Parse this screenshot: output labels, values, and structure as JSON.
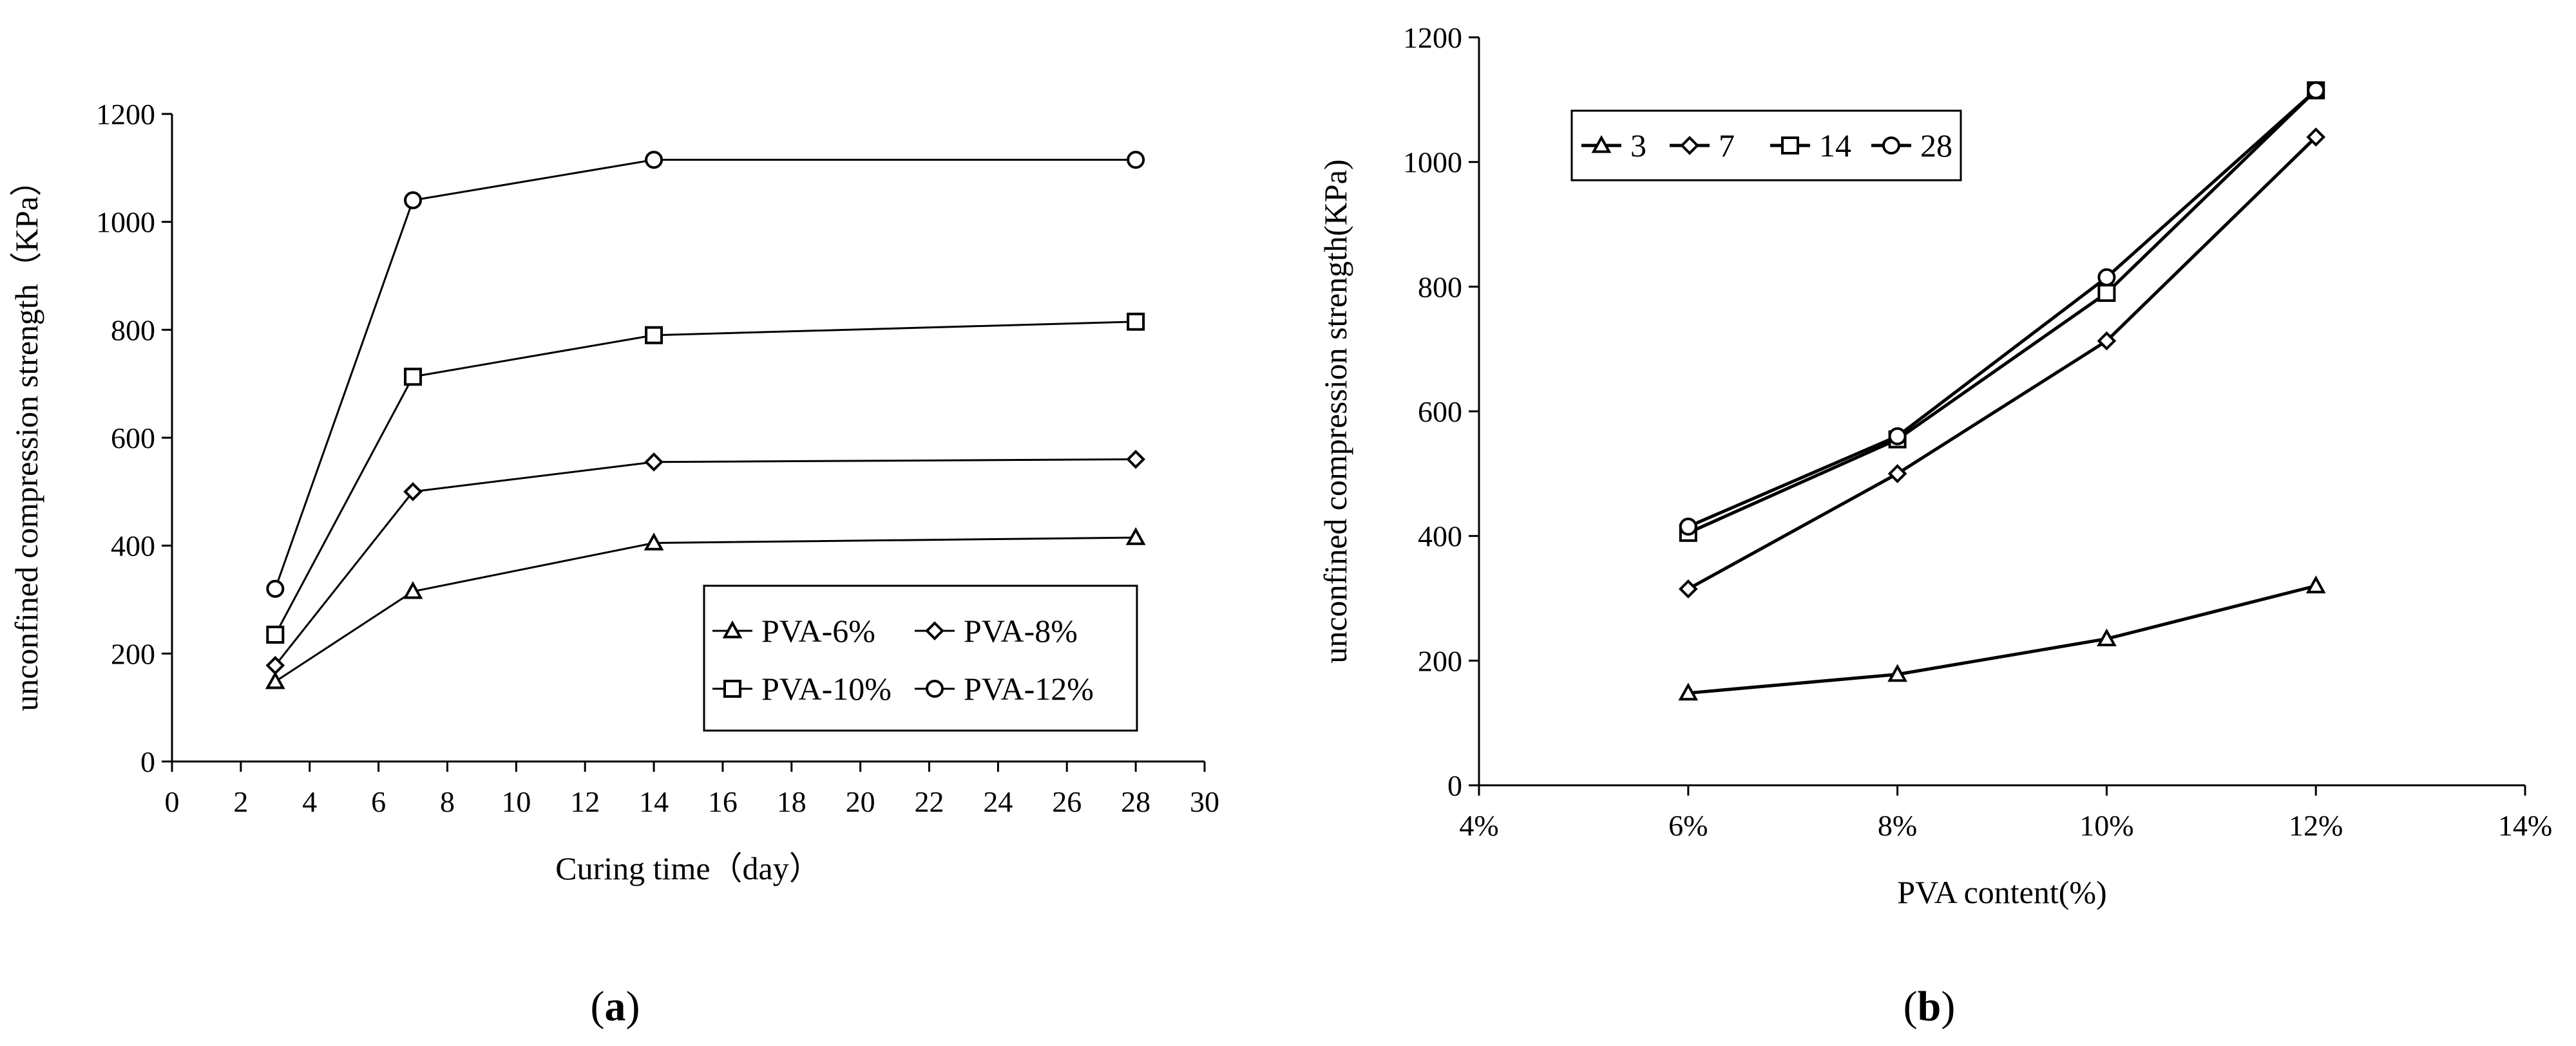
{
  "chart_data": [
    {
      "type": "line",
      "panel_label": "a",
      "title": "",
      "xlabel": "Curing time（day）",
      "ylabel": "unconfined compression strength（KPa）",
      "xlim": [
        0,
        30
      ],
      "ylim": [
        0,
        1200
      ],
      "xticks": [
        "0",
        "2",
        "4",
        "6",
        "8",
        "10",
        "12",
        "14",
        "16",
        "18",
        "20",
        "22",
        "24",
        "26",
        "28",
        "30"
      ],
      "yticks": [
        "0",
        "200",
        "400",
        "600",
        "800",
        "1000",
        "1200"
      ],
      "x": [
        3,
        7,
        14,
        28
      ],
      "series": [
        {
          "name": "PVA-6%",
          "marker": "triangle",
          "values": [
            148,
            315,
            405,
            415
          ]
        },
        {
          "name": "PVA-8%",
          "marker": "diamond",
          "values": [
            178,
            500,
            555,
            560
          ]
        },
        {
          "name": "PVA-10%",
          "marker": "square",
          "values": [
            235,
            713,
            790,
            815
          ]
        },
        {
          "name": "PVA-12%",
          "marker": "circle",
          "values": [
            320,
            1040,
            1115,
            1115
          ]
        }
      ],
      "grid": false,
      "legend_position": "bottom-right"
    },
    {
      "type": "line",
      "panel_label": "b",
      "title": "",
      "xlabel": "PVA content(%)",
      "ylabel": "unconfined compression strength(KPa)",
      "xlim": [
        4,
        14
      ],
      "ylim": [
        0,
        1200
      ],
      "xticks": [
        "4%",
        "6%",
        "8%",
        "10%",
        "12%",
        "14%"
      ],
      "yticks": [
        "0",
        "200",
        "400",
        "600",
        "800",
        "1000",
        "1200"
      ],
      "x": [
        6,
        8,
        10,
        12
      ],
      "series": [
        {
          "name": "3",
          "marker": "triangle",
          "values": [
            148,
            178,
            235,
            320
          ]
        },
        {
          "name": "7",
          "marker": "diamond",
          "values": [
            315,
            500,
            713,
            1040
          ]
        },
        {
          "name": "14",
          "marker": "square",
          "values": [
            405,
            555,
            790,
            1115
          ]
        },
        {
          "name": "28",
          "marker": "circle",
          "values": [
            415,
            560,
            815,
            1115
          ]
        }
      ],
      "grid": false,
      "legend_position": "top-left"
    }
  ]
}
